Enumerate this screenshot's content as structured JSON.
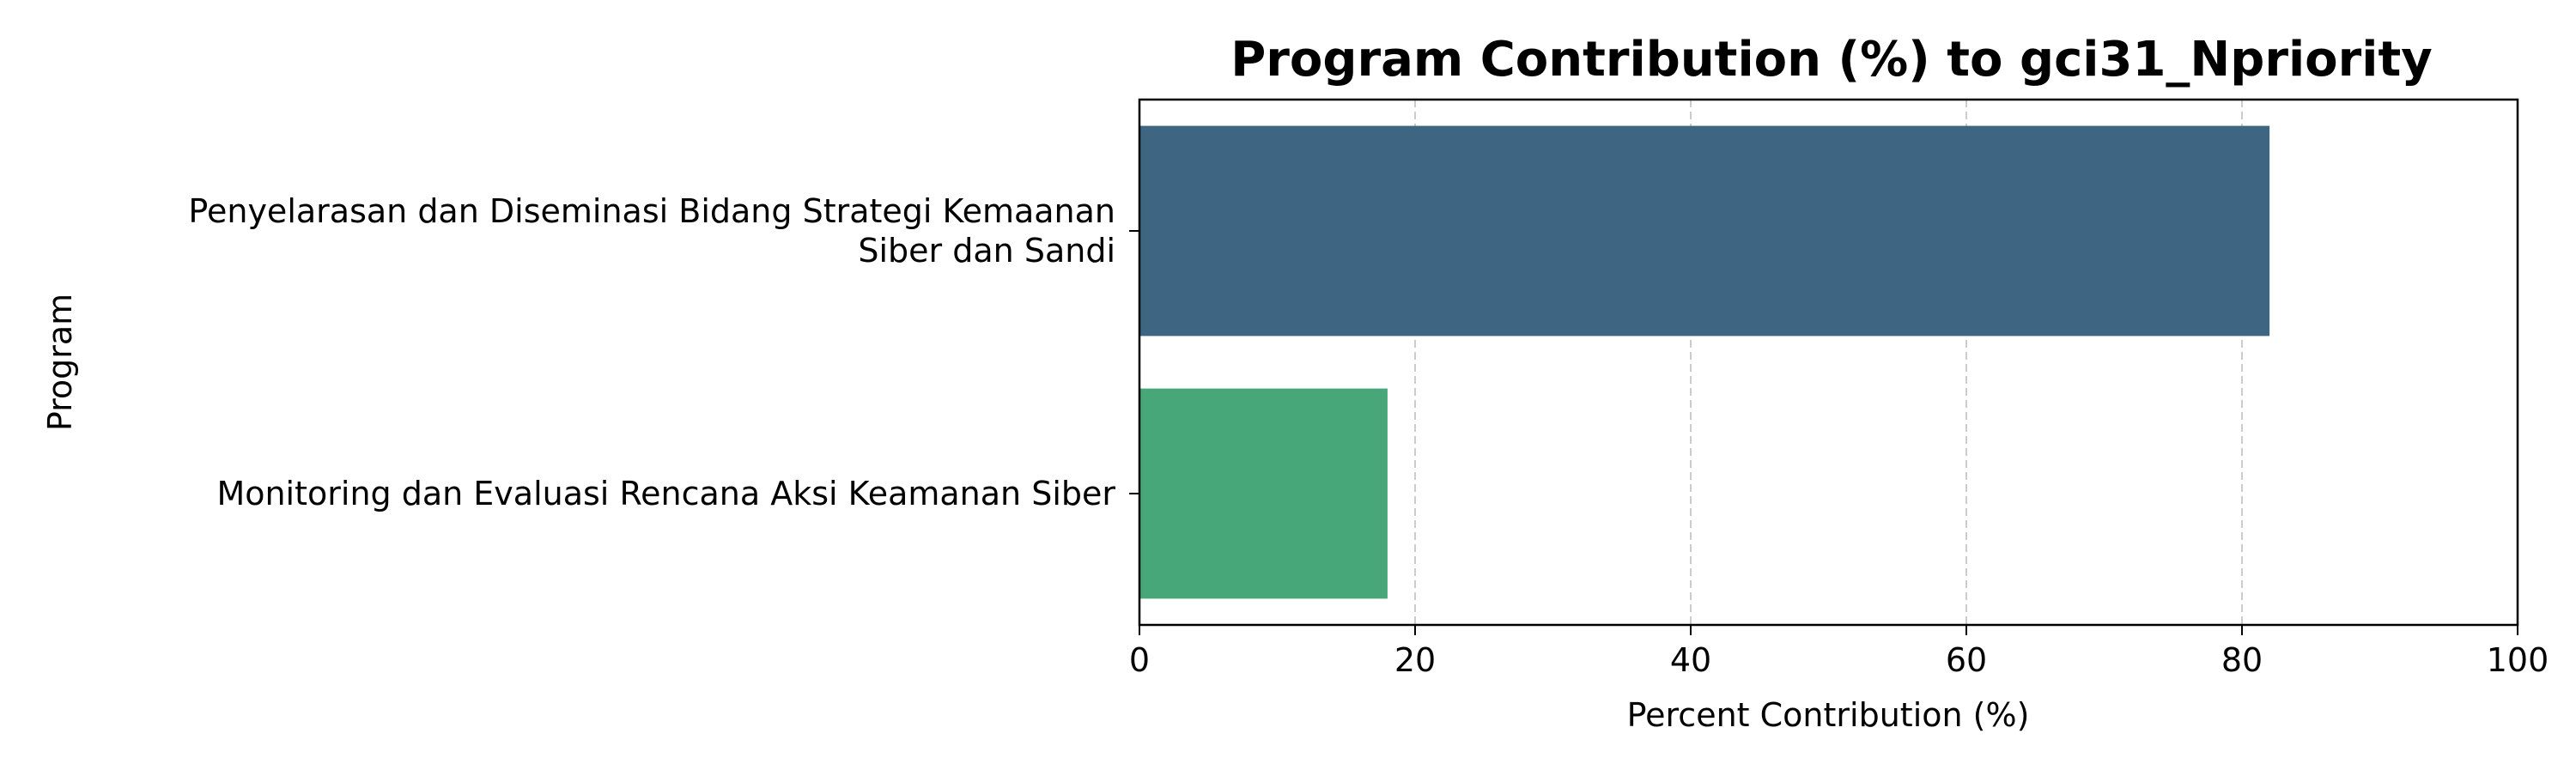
{
  "chart_data": {
    "type": "bar",
    "orientation": "horizontal",
    "title": "Program Contribution (%) to gci31_Npriority",
    "xlabel": "Percent Contribution (%)",
    "ylabel": "Program",
    "xlim": [
      0,
      100
    ],
    "xticks": [
      0,
      20,
      40,
      60,
      80,
      100
    ],
    "grid": "x-axis dashed",
    "categories": [
      [
        "Penyelarasan dan Diseminasi Bidang Strategi Kemaanan",
        "Siber dan Sandi"
      ],
      [
        "Monitoring dan Evaluasi Rencana Aksi Keamanan Siber"
      ]
    ],
    "values": [
      82,
      18
    ],
    "colors": [
      "#3e6582",
      "#47a778"
    ]
  }
}
